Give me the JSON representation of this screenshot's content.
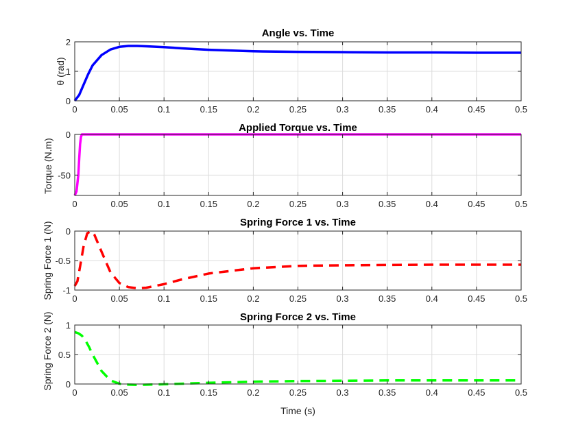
{
  "figure": {
    "xlabel": "Time (s)"
  },
  "chart_data": [
    {
      "type": "line",
      "title": "Angle vs. Time",
      "xlabel": "",
      "ylabel": "θ (rad)",
      "xlim": [
        0,
        0.5
      ],
      "ylim": [
        0,
        2
      ],
      "xticks": [
        "0",
        "0.05",
        "0.1",
        "0.15",
        "0.2",
        "0.25",
        "0.3",
        "0.35",
        "0.4",
        "0.45",
        "0.5"
      ],
      "yticks": [
        {
          "v": 0,
          "label": "0"
        },
        {
          "v": 1,
          "label": "1"
        },
        {
          "v": 2,
          "label": "2"
        }
      ],
      "grid": true,
      "series": [
        {
          "color": "#0000ff",
          "style": "solid",
          "x": [
            0,
            0.005,
            0.01,
            0.015,
            0.02,
            0.03,
            0.04,
            0.05,
            0.06,
            0.07,
            0.08,
            0.1,
            0.12,
            0.15,
            0.2,
            0.25,
            0.3,
            0.35,
            0.4,
            0.45,
            0.5
          ],
          "y": [
            0,
            0.2,
            0.55,
            0.9,
            1.2,
            1.55,
            1.74,
            1.83,
            1.86,
            1.86,
            1.85,
            1.82,
            1.78,
            1.73,
            1.68,
            1.66,
            1.65,
            1.64,
            1.64,
            1.63,
            1.63
          ]
        }
      ]
    },
    {
      "type": "line",
      "title": "Applied Torque vs. Time",
      "xlabel": "",
      "ylabel": "Torque (N.m)",
      "xlim": [
        0,
        0.5
      ],
      "ylim": [
        -75,
        0
      ],
      "xticks": [
        "0",
        "0.05",
        "0.1",
        "0.15",
        "0.2",
        "0.25",
        "0.3",
        "0.35",
        "0.4",
        "0.45",
        "0.5"
      ],
      "yticks": [
        {
          "v": -50,
          "label": "-50"
        },
        {
          "v": 0,
          "label": "0"
        }
      ],
      "grid": true,
      "series": [
        {
          "color": "#ff00ff",
          "style": "solid",
          "x": [
            0,
            0.002,
            0.004,
            0.005,
            0.006,
            0.007,
            0.008,
            0.01,
            0.05,
            0.1,
            0.2,
            0.3,
            0.4,
            0.5
          ],
          "y": [
            -75,
            -70,
            -50,
            -30,
            -12,
            -3,
            0,
            0,
            0,
            0,
            0,
            0,
            0,
            0
          ]
        }
      ]
    },
    {
      "type": "line",
      "title": "Spring Force 1 vs. Time",
      "xlabel": "",
      "ylabel": "Spring Force 1 (N)",
      "xlim": [
        0,
        0.5
      ],
      "ylim": [
        -1,
        0
      ],
      "xticks": [
        "0",
        "0.05",
        "0.1",
        "0.15",
        "0.2",
        "0.25",
        "0.3",
        "0.35",
        "0.4",
        "0.45",
        "0.5"
      ],
      "yticks": [
        {
          "v": -1,
          "label": "-1"
        },
        {
          "v": -0.5,
          "label": "-0.5"
        },
        {
          "v": 0,
          "label": "0"
        }
      ],
      "grid": true,
      "series": [
        {
          "color": "#ff0000",
          "style": "dashed",
          "x": [
            0,
            0.003,
            0.006,
            0.01,
            0.014,
            0.018,
            0.022,
            0.03,
            0.04,
            0.05,
            0.06,
            0.07,
            0.08,
            0.1,
            0.12,
            0.15,
            0.2,
            0.25,
            0.3,
            0.35,
            0.4,
            0.45,
            0.5
          ],
          "y": [
            -0.93,
            -0.85,
            -0.6,
            -0.25,
            -0.04,
            0,
            -0.06,
            -0.35,
            -0.7,
            -0.88,
            -0.95,
            -0.97,
            -0.96,
            -0.9,
            -0.82,
            -0.72,
            -0.63,
            -0.59,
            -0.58,
            -0.575,
            -0.57,
            -0.57,
            -0.57
          ]
        }
      ]
    },
    {
      "type": "line",
      "title": "Spring Force 2 vs. Time",
      "xlabel": "Time (s)",
      "ylabel": "Spring Force 2 (N)",
      "xlim": [
        0,
        0.5
      ],
      "ylim": [
        0,
        1
      ],
      "xticks": [
        "0",
        "0.05",
        "0.1",
        "0.15",
        "0.2",
        "0.25",
        "0.3",
        "0.35",
        "0.4",
        "0.45",
        "0.5"
      ],
      "yticks": [
        {
          "v": 0,
          "label": "0"
        },
        {
          "v": 0.5,
          "label": "0.5"
        },
        {
          "v": 1,
          "label": "1"
        }
      ],
      "grid": true,
      "series": [
        {
          "color": "#00ff00",
          "style": "dashed",
          "x": [
            0,
            0.004,
            0.008,
            0.012,
            0.016,
            0.02,
            0.025,
            0.03,
            0.04,
            0.05,
            0.06,
            0.07,
            0.08,
            0.1,
            0.15,
            0.2,
            0.25,
            0.3,
            0.35,
            0.4,
            0.45,
            0.5
          ],
          "y": [
            0.88,
            0.86,
            0.82,
            0.74,
            0.63,
            0.5,
            0.36,
            0.22,
            0.06,
            0.005,
            -0.01,
            -0.015,
            -0.012,
            -0.005,
            0.02,
            0.04,
            0.05,
            0.055,
            0.06,
            0.06,
            0.06,
            0.06
          ]
        }
      ]
    }
  ]
}
